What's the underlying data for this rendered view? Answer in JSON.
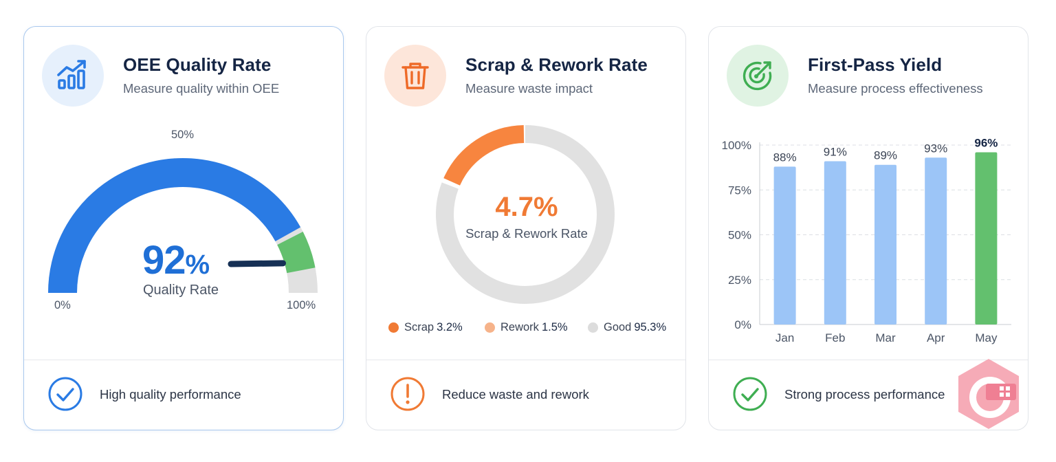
{
  "colors": {
    "blue_primary": "#2a7be4",
    "green_accent": "#63c06e",
    "orange_accent": "#f7853f",
    "gray_track": "#e1e1e1",
    "bar_light_blue": "#9cc5f7",
    "navy_text": "#152544"
  },
  "cards": [
    {
      "icon": "trending-bar-chart-icon",
      "title": "OEE Quality Rate",
      "subtitle": "Measure quality within OEE",
      "gauge": {
        "value": 92,
        "value_number": "92",
        "value_unit": "%",
        "label": "Quality Rate",
        "min_label": "0%",
        "mid_label": "50%",
        "max_label": "100%",
        "green_zone_start": 85,
        "green_zone_end": 95
      },
      "footer": {
        "icon": "check-circle-icon",
        "text": "High quality performance"
      }
    },
    {
      "icon": "trash-can-icon",
      "title": "Scrap & Rework Rate",
      "subtitle": "Measure waste impact",
      "donut": {
        "value": "4.7%",
        "label": "Scrap & Rework Rate",
        "legend": [
          {
            "name": "Scrap",
            "value": "3.2%",
            "color": "#f07a34"
          },
          {
            "name": "Rework",
            "value": "1.5%",
            "color": "#f6b38a"
          },
          {
            "name": "Good",
            "value": "95.3%",
            "color": "#dcdcdc"
          }
        ]
      },
      "footer": {
        "icon": "exclamation-circle-icon",
        "text": "Reduce waste and rework"
      }
    },
    {
      "icon": "target-arrow-icon",
      "title": "First-Pass Yield",
      "subtitle": "Measure process effectiveness",
      "footer": {
        "icon": "check-circle-icon",
        "text": "Strong process performance"
      }
    }
  ],
  "chart_data": {
    "type": "bar",
    "categories": [
      "Jan",
      "Feb",
      "Mar",
      "Apr",
      "May"
    ],
    "values": [
      88,
      91,
      89,
      93,
      96
    ],
    "value_labels": [
      "88%",
      "91%",
      "89%",
      "93%",
      "96%"
    ],
    "y_ticks": [
      "0%",
      "25%",
      "50%",
      "75%",
      "100%"
    ],
    "ylim": [
      0,
      100
    ],
    "grid": true,
    "highlight_category": "May"
  }
}
